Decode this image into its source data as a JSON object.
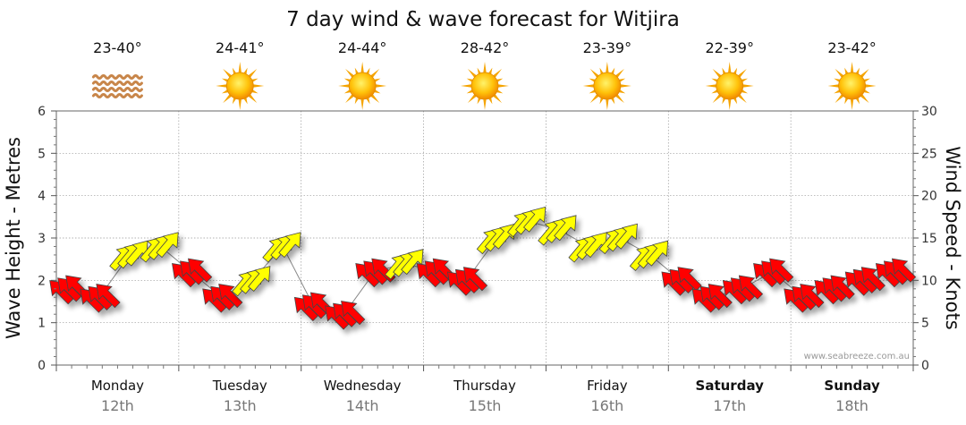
{
  "chart_data": {
    "type": "line",
    "title": "7 day wind & wave forecast for Witjira",
    "ylabel_left": "Wave Height - Metres",
    "ylabel_right": "Wind Speed - Knots",
    "ylim_left": [
      0,
      6
    ],
    "ylim_right": [
      0,
      30
    ],
    "yticks_left": [
      "0",
      "1",
      "2",
      "3",
      "4",
      "5",
      "6"
    ],
    "yticks_right": [
      "0",
      "5",
      "10",
      "15",
      "20",
      "25",
      "30"
    ],
    "grid": true,
    "days": [
      {
        "day": "Monday",
        "date": "12th",
        "temp": "23-40°",
        "weather_icon": "haze-icon",
        "weekend": false
      },
      {
        "day": "Tuesday",
        "date": "13th",
        "temp": "24-41°",
        "weather_icon": "sun-icon",
        "weekend": false
      },
      {
        "day": "Wednesday",
        "date": "14th",
        "temp": "24-44°",
        "weather_icon": "sun-icon",
        "weekend": false
      },
      {
        "day": "Thursday",
        "date": "15th",
        "temp": "28-42°",
        "weather_icon": "sun-icon",
        "weekend": false
      },
      {
        "day": "Friday",
        "date": "16th",
        "temp": "23-39°",
        "weather_icon": "sun-icon",
        "weekend": false
      },
      {
        "day": "Saturday",
        "date": "17th",
        "temp": "22-39°",
        "weather_icon": "sun-icon",
        "weekend": true
      },
      {
        "day": "Sunday",
        "date": "18th",
        "temp": "23-42°",
        "weather_icon": "sun-icon",
        "weekend": true
      }
    ],
    "wind_series": {
      "name": "Wind Speed",
      "unit": "knots",
      "x_day": [
        0.1,
        0.35,
        0.6,
        0.85,
        1.1,
        1.35,
        1.6,
        1.85,
        2.1,
        2.35,
        2.6,
        2.85,
        3.1,
        3.35,
        3.6,
        3.85,
        4.1,
        4.35,
        4.6,
        4.85,
        5.1,
        5.35,
        5.6,
        5.85,
        6.1,
        6.35,
        6.6,
        6.85
      ],
      "speed_knots": [
        9,
        8,
        13,
        14,
        11,
        8,
        10,
        14,
        7,
        6,
        11,
        12,
        11,
        10,
        15,
        17,
        16,
        14,
        15,
        13,
        10,
        8,
        9,
        11,
        8,
        9,
        10,
        11
      ],
      "direction_color": [
        "red",
        "red",
        "yellow",
        "yellow",
        "red",
        "red",
        "yellow",
        "yellow",
        "red",
        "red",
        "red",
        "yellow",
        "red",
        "red",
        "yellow",
        "yellow",
        "yellow",
        "yellow",
        "yellow",
        "yellow",
        "red",
        "red",
        "red",
        "red",
        "red",
        "red",
        "red",
        "red"
      ]
    },
    "colors": {
      "wind_high": "#ffff00",
      "wind_low": "#ff0000",
      "arrow_outline": "#444444",
      "sun": "#ffa500",
      "haze": "#c8864a"
    }
  },
  "credit": "www.seabreeze.com.au"
}
